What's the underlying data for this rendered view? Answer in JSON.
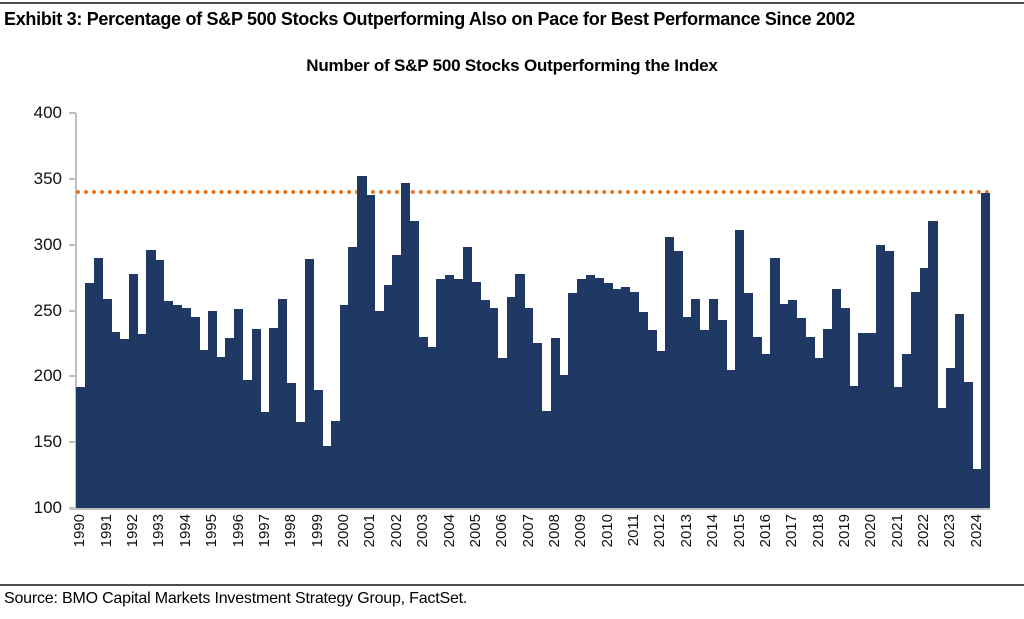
{
  "page": {
    "exhibit_title": "Exhibit 3: Percentage of S&P 500 Stocks Outperforming Also on Pace for Best Performance Since 2002",
    "source_line": "Source: BMO Capital Markets Investment Strategy Group, FactSet."
  },
  "chart_data": {
    "type": "bar",
    "title": "Number of S&P 500 Stocks Outperforming the Index",
    "xlabel": "",
    "ylabel": "",
    "ylim": [
      100,
      400
    ],
    "yticks": [
      100,
      150,
      200,
      250,
      300,
      350,
      400
    ],
    "grid": false,
    "legend_position": "none",
    "bar_color": "#1F3864",
    "axis_color": "#BFBFBF",
    "reference_line": {
      "value": 340,
      "color": "#E87722",
      "style": "dotted"
    },
    "years": [
      {
        "year": "1990",
        "values": [
          192,
          271,
          290
        ]
      },
      {
        "year": "1991",
        "values": [
          259,
          234,
          228
        ]
      },
      {
        "year": "1992",
        "values": [
          278,
          232,
          296
        ]
      },
      {
        "year": "1993",
        "values": [
          288,
          257,
          254
        ]
      },
      {
        "year": "1994",
        "values": [
          252,
          245,
          220
        ]
      },
      {
        "year": "1995",
        "values": [
          250,
          215,
          229
        ]
      },
      {
        "year": "1996",
        "values": [
          251,
          197,
          236
        ]
      },
      {
        "year": "1997",
        "values": [
          173,
          237,
          259
        ]
      },
      {
        "year": "1998",
        "values": [
          195,
          165,
          289
        ]
      },
      {
        "year": "1999",
        "values": [
          190,
          147,
          166
        ]
      },
      {
        "year": "2000",
        "values": [
          254,
          298,
          352
        ]
      },
      {
        "year": "2001",
        "values": [
          338,
          250,
          269
        ]
      },
      {
        "year": "2002",
        "values": [
          292,
          347,
          318
        ]
      },
      {
        "year": "2003",
        "values": [
          230,
          222,
          274
        ]
      },
      {
        "year": "2004",
        "values": [
          277,
          274,
          298
        ]
      },
      {
        "year": "2005",
        "values": [
          272,
          258,
          252
        ]
      },
      {
        "year": "2006",
        "values": [
          214,
          260,
          278
        ]
      },
      {
        "year": "2007",
        "values": [
          252,
          225,
          174
        ]
      },
      {
        "year": "2008",
        "values": [
          229,
          201,
          263
        ]
      },
      {
        "year": "2009",
        "values": [
          274,
          277,
          275
        ]
      },
      {
        "year": "2010",
        "values": [
          271,
          266,
          268
        ]
      },
      {
        "year": "2011",
        "values": [
          264,
          249,
          235
        ]
      },
      {
        "year": "2012",
        "values": [
          219,
          306,
          295
        ]
      },
      {
        "year": "2013",
        "values": [
          245,
          259,
          235
        ]
      },
      {
        "year": "2014",
        "values": [
          259,
          243,
          205
        ]
      },
      {
        "year": "2015",
        "values": [
          311,
          263,
          230
        ]
      },
      {
        "year": "2016",
        "values": [
          217,
          290,
          255
        ]
      },
      {
        "year": "2017",
        "values": [
          258,
          244,
          230
        ]
      },
      {
        "year": "2018",
        "values": [
          214,
          236,
          266
        ]
      },
      {
        "year": "2019",
        "values": [
          252,
          193,
          233
        ]
      },
      {
        "year": "2020",
        "values": [
          233,
          300,
          295
        ]
      },
      {
        "year": "2021",
        "values": [
          192,
          217,
          264
        ]
      },
      {
        "year": "2022",
        "values": [
          282,
          318,
          176
        ]
      },
      {
        "year": "2023",
        "values": [
          206,
          247,
          196
        ]
      },
      {
        "year": "2024",
        "values": [
          130,
          339
        ]
      }
    ]
  }
}
